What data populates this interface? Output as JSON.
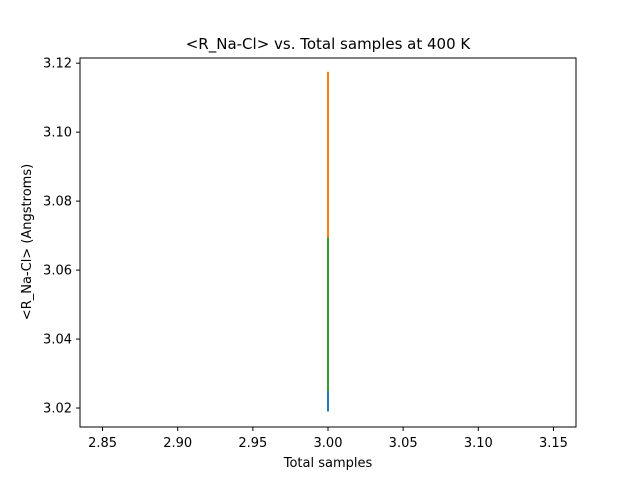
{
  "chart_data": {
    "type": "line",
    "title": "<R_Na-Cl> vs. Total samples at 400 K",
    "xlabel": "Total samples",
    "ylabel": "<R_Na-Cl> (Angstroms)",
    "xlim": [
      2.835,
      3.165
    ],
    "ylim": [
      3.0145,
      3.1215
    ],
    "xticks": [
      "2.85",
      "2.90",
      "2.95",
      "3.00",
      "3.05",
      "3.10",
      "3.15"
    ],
    "yticks": [
      "3.02",
      "3.04",
      "3.06",
      "3.08",
      "3.10",
      "3.12"
    ],
    "grid": false,
    "series": [
      {
        "color": "#1f77b4",
        "x": [
          3.0,
          3.0
        ],
        "y": [
          3.019,
          3.025
        ]
      },
      {
        "color": "#ff7f0e",
        "x": [
          3.0,
          3.0
        ],
        "y": [
          3.069,
          3.1175
        ]
      },
      {
        "color": "#2ca02c",
        "x": [
          3.0,
          3.0
        ],
        "y": [
          3.025,
          3.0695
        ]
      }
    ]
  }
}
